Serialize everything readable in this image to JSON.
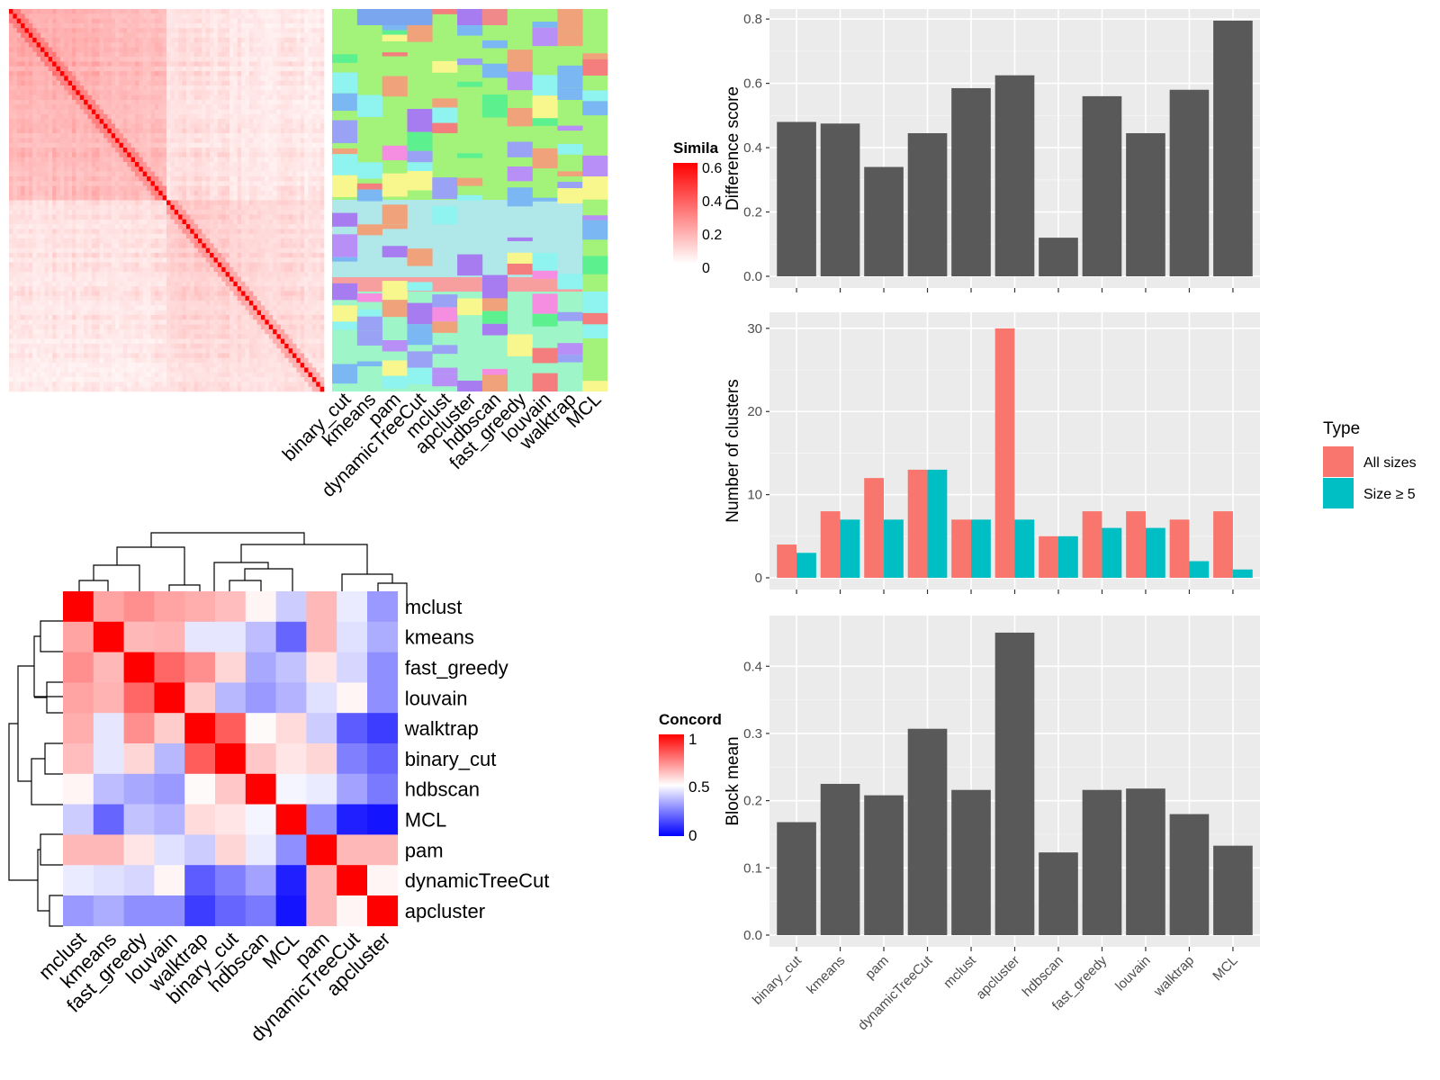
{
  "colors": {
    "panel_bg": "#ebebeb",
    "grid": "#ffffff",
    "bar_gray": "#595959",
    "all_sizes": "#f8766d",
    "size_ge5": "#00bfc4",
    "matrix_green": "#a3f27a",
    "matrix_cyan": "#b0e8ea",
    "matrix_salmon": "#f79e9e",
    "matrix_mint": "#9ef5c7",
    "heat_high": "#ff0000",
    "heat_mid": "#ffffff",
    "heat_low": "#0000ff"
  },
  "similarity_legend": {
    "title": "Simila",
    "ticks": [
      "0.6",
      "0.4",
      "0.2",
      "0"
    ]
  },
  "concordance_legend": {
    "title": "Concord",
    "ticks": [
      "1",
      "0.5",
      "0"
    ]
  },
  "matrix_labels": [
    "binary_cut",
    "kmeans",
    "pam",
    "dynamicTreeCut",
    "mclust",
    "apcluster",
    "hdbscan",
    "fast_greedy",
    "louvain",
    "walktrap",
    "MCL"
  ],
  "concordance_order": [
    "mclust",
    "kmeans",
    "fast_greedy",
    "louvain",
    "walktrap",
    "binary_cut",
    "hdbscan",
    "MCL",
    "pam",
    "dynamicTreeCut",
    "apcluster"
  ],
  "methods_bar": [
    "binary_cut",
    "kmeans",
    "pam",
    "dynamicTreeCut",
    "mclust",
    "apcluster",
    "hdbscan",
    "fast_greedy",
    "louvain",
    "walktrap",
    "MCL"
  ],
  "chart_data": [
    {
      "type": "bar",
      "ylabel": "Difference score",
      "ylim": [
        0,
        0.82
      ],
      "yticks": [
        "0.0",
        "0.2",
        "0.4",
        "0.6",
        "0.8"
      ],
      "categories": [
        "binary_cut",
        "kmeans",
        "pam",
        "dynamicTreeCut",
        "mclust",
        "apcluster",
        "hdbscan",
        "fast_greedy",
        "louvain",
        "walktrap",
        "MCL"
      ],
      "values": [
        0.48,
        0.475,
        0.34,
        0.445,
        0.585,
        0.625,
        0.12,
        0.56,
        0.445,
        0.58,
        0.795
      ]
    },
    {
      "type": "bar",
      "ylabel": "Number of clusters",
      "ylim": [
        0,
        31.5
      ],
      "yticks": [
        "0",
        "10",
        "20",
        "30"
      ],
      "legend_title": "Type",
      "categories": [
        "binary_cut",
        "kmeans",
        "pam",
        "dynamicTreeCut",
        "mclust",
        "apcluster",
        "hdbscan",
        "fast_greedy",
        "louvain",
        "walktrap",
        "MCL"
      ],
      "series": [
        {
          "name": "All sizes",
          "values": [
            4,
            8,
            12,
            13,
            7,
            30,
            5,
            8,
            8,
            7,
            8
          ]
        },
        {
          "name": "Size ≥ 5",
          "values": [
            3,
            7,
            7,
            13,
            7,
            7,
            5,
            6,
            6,
            2,
            1
          ]
        }
      ]
    },
    {
      "type": "bar",
      "ylabel": "Block mean",
      "ylim": [
        0,
        0.47
      ],
      "yticks": [
        "0.0",
        "0.1",
        "0.2",
        "0.3",
        "0.4"
      ],
      "categories": [
        "binary_cut",
        "kmeans",
        "pam",
        "dynamicTreeCut",
        "mclust",
        "apcluster",
        "hdbscan",
        "fast_greedy",
        "louvain",
        "walktrap",
        "MCL"
      ],
      "values": [
        0.168,
        0.225,
        0.208,
        0.307,
        0.216,
        0.45,
        0.123,
        0.216,
        0.218,
        0.18,
        0.133
      ]
    },
    {
      "type": "heatmap",
      "legend": "Concord",
      "rows": [
        "mclust",
        "kmeans",
        "fast_greedy",
        "louvain",
        "walktrap",
        "binary_cut",
        "hdbscan",
        "MCL",
        "pam",
        "dynamicTreeCut",
        "apcluster"
      ],
      "cols": [
        "mclust",
        "kmeans",
        "fast_greedy",
        "louvain",
        "walktrap",
        "binary_cut",
        "hdbscan",
        "MCL",
        "pam",
        "dynamicTreeCut",
        "apcluster"
      ],
      "values": [
        [
          1.0,
          0.68,
          0.72,
          0.68,
          0.66,
          0.63,
          0.52,
          0.4,
          0.64,
          0.46,
          0.3
        ],
        [
          0.68,
          1.0,
          0.64,
          0.65,
          0.45,
          0.45,
          0.37,
          0.2,
          0.64,
          0.44,
          0.34
        ],
        [
          0.72,
          0.64,
          1.0,
          0.8,
          0.72,
          0.58,
          0.33,
          0.38,
          0.55,
          0.42,
          0.28
        ],
        [
          0.68,
          0.65,
          0.8,
          1.0,
          0.6,
          0.36,
          0.3,
          0.35,
          0.44,
          0.52,
          0.28
        ],
        [
          0.66,
          0.45,
          0.72,
          0.6,
          1.0,
          0.82,
          0.51,
          0.57,
          0.4,
          0.18,
          0.12
        ],
        [
          0.63,
          0.45,
          0.58,
          0.36,
          0.82,
          1.0,
          0.61,
          0.55,
          0.58,
          0.25,
          0.2
        ],
        [
          0.52,
          0.37,
          0.33,
          0.3,
          0.51,
          0.61,
          1.0,
          0.48,
          0.46,
          0.32,
          0.24
        ],
        [
          0.4,
          0.2,
          0.38,
          0.35,
          0.57,
          0.55,
          0.48,
          1.0,
          0.28,
          0.06,
          0.04
        ],
        [
          0.64,
          0.64,
          0.55,
          0.44,
          0.4,
          0.58,
          0.46,
          0.28,
          1.0,
          0.64,
          0.64
        ],
        [
          0.46,
          0.44,
          0.42,
          0.52,
          0.18,
          0.25,
          0.32,
          0.06,
          0.64,
          1.0,
          0.52
        ],
        [
          0.3,
          0.34,
          0.28,
          0.28,
          0.12,
          0.2,
          0.24,
          0.04,
          0.64,
          0.52,
          1.0
        ]
      ]
    }
  ]
}
